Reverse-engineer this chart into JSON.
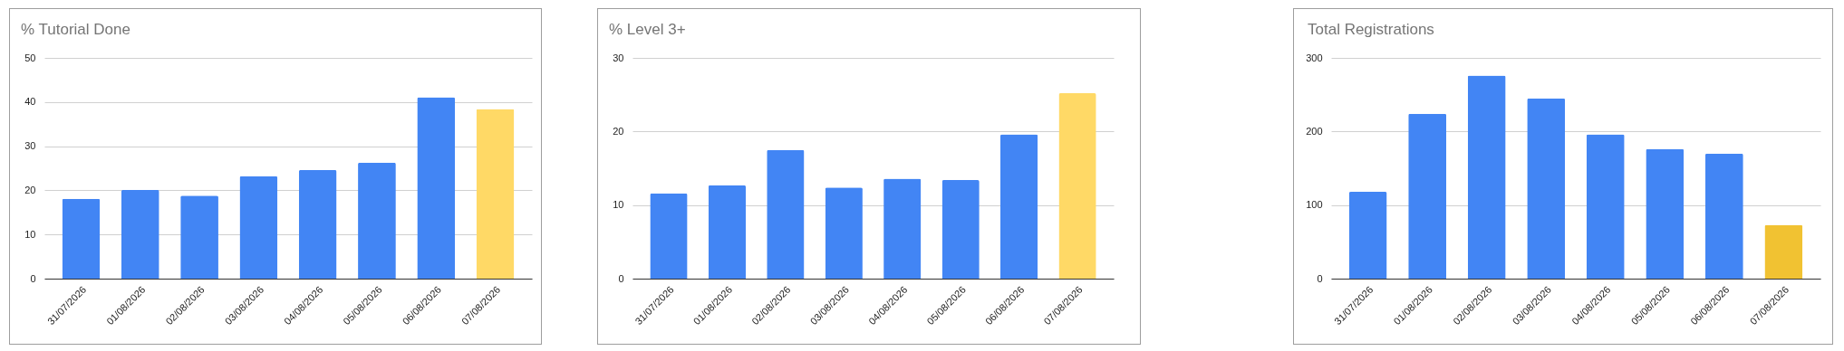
{
  "chart_data": [
    {
      "type": "bar",
      "title": "% Tutorial Done",
      "categories": [
        "31/07/2026",
        "01/08/2026",
        "02/08/2026",
        "03/08/2026",
        "04/08/2026",
        "05/08/2026",
        "06/08/2026",
        "07/08/2026"
      ],
      "values": [
        18.1,
        20.1,
        18.8,
        23.2,
        24.6,
        26.3,
        41.1,
        38.4
      ],
      "colors": [
        "#4285f4",
        "#4285f4",
        "#4285f4",
        "#4285f4",
        "#4285f4",
        "#4285f4",
        "#4285f4",
        "#ffd966"
      ],
      "ylim": [
        0,
        50
      ],
      "yticks": [
        0,
        10,
        20,
        30,
        40,
        50
      ],
      "grid": "y"
    },
    {
      "type": "bar",
      "title": "% Level 3+",
      "categories": [
        "31/07/2026",
        "01/08/2026",
        "02/08/2026",
        "03/08/2026",
        "04/08/2026",
        "05/08/2026",
        "06/08/2026",
        "07/08/2026"
      ],
      "values": [
        11.6,
        12.7,
        17.5,
        12.4,
        13.6,
        13.4,
        19.6,
        25.2
      ],
      "colors": [
        "#4285f4",
        "#4285f4",
        "#4285f4",
        "#4285f4",
        "#4285f4",
        "#4285f4",
        "#4285f4",
        "#ffd966"
      ],
      "ylim": [
        0,
        30
      ],
      "yticks": [
        0,
        10,
        20,
        30
      ],
      "grid": "y"
    },
    {
      "type": "bar",
      "title": "Total Registrations",
      "categories": [
        "31/07/2026",
        "01/08/2026",
        "02/08/2026",
        "03/08/2026",
        "04/08/2026",
        "05/08/2026",
        "06/08/2026",
        "07/08/2026"
      ],
      "values": [
        118,
        224,
        276,
        245,
        196,
        176,
        170,
        73
      ],
      "colors": [
        "#4285f4",
        "#4285f4",
        "#4285f4",
        "#4285f4",
        "#4285f4",
        "#4285f4",
        "#4285f4",
        "#f1c232"
      ],
      "ylim": [
        0,
        300
      ],
      "yticks": [
        0,
        100,
        200,
        300
      ],
      "grid": "y"
    }
  ]
}
